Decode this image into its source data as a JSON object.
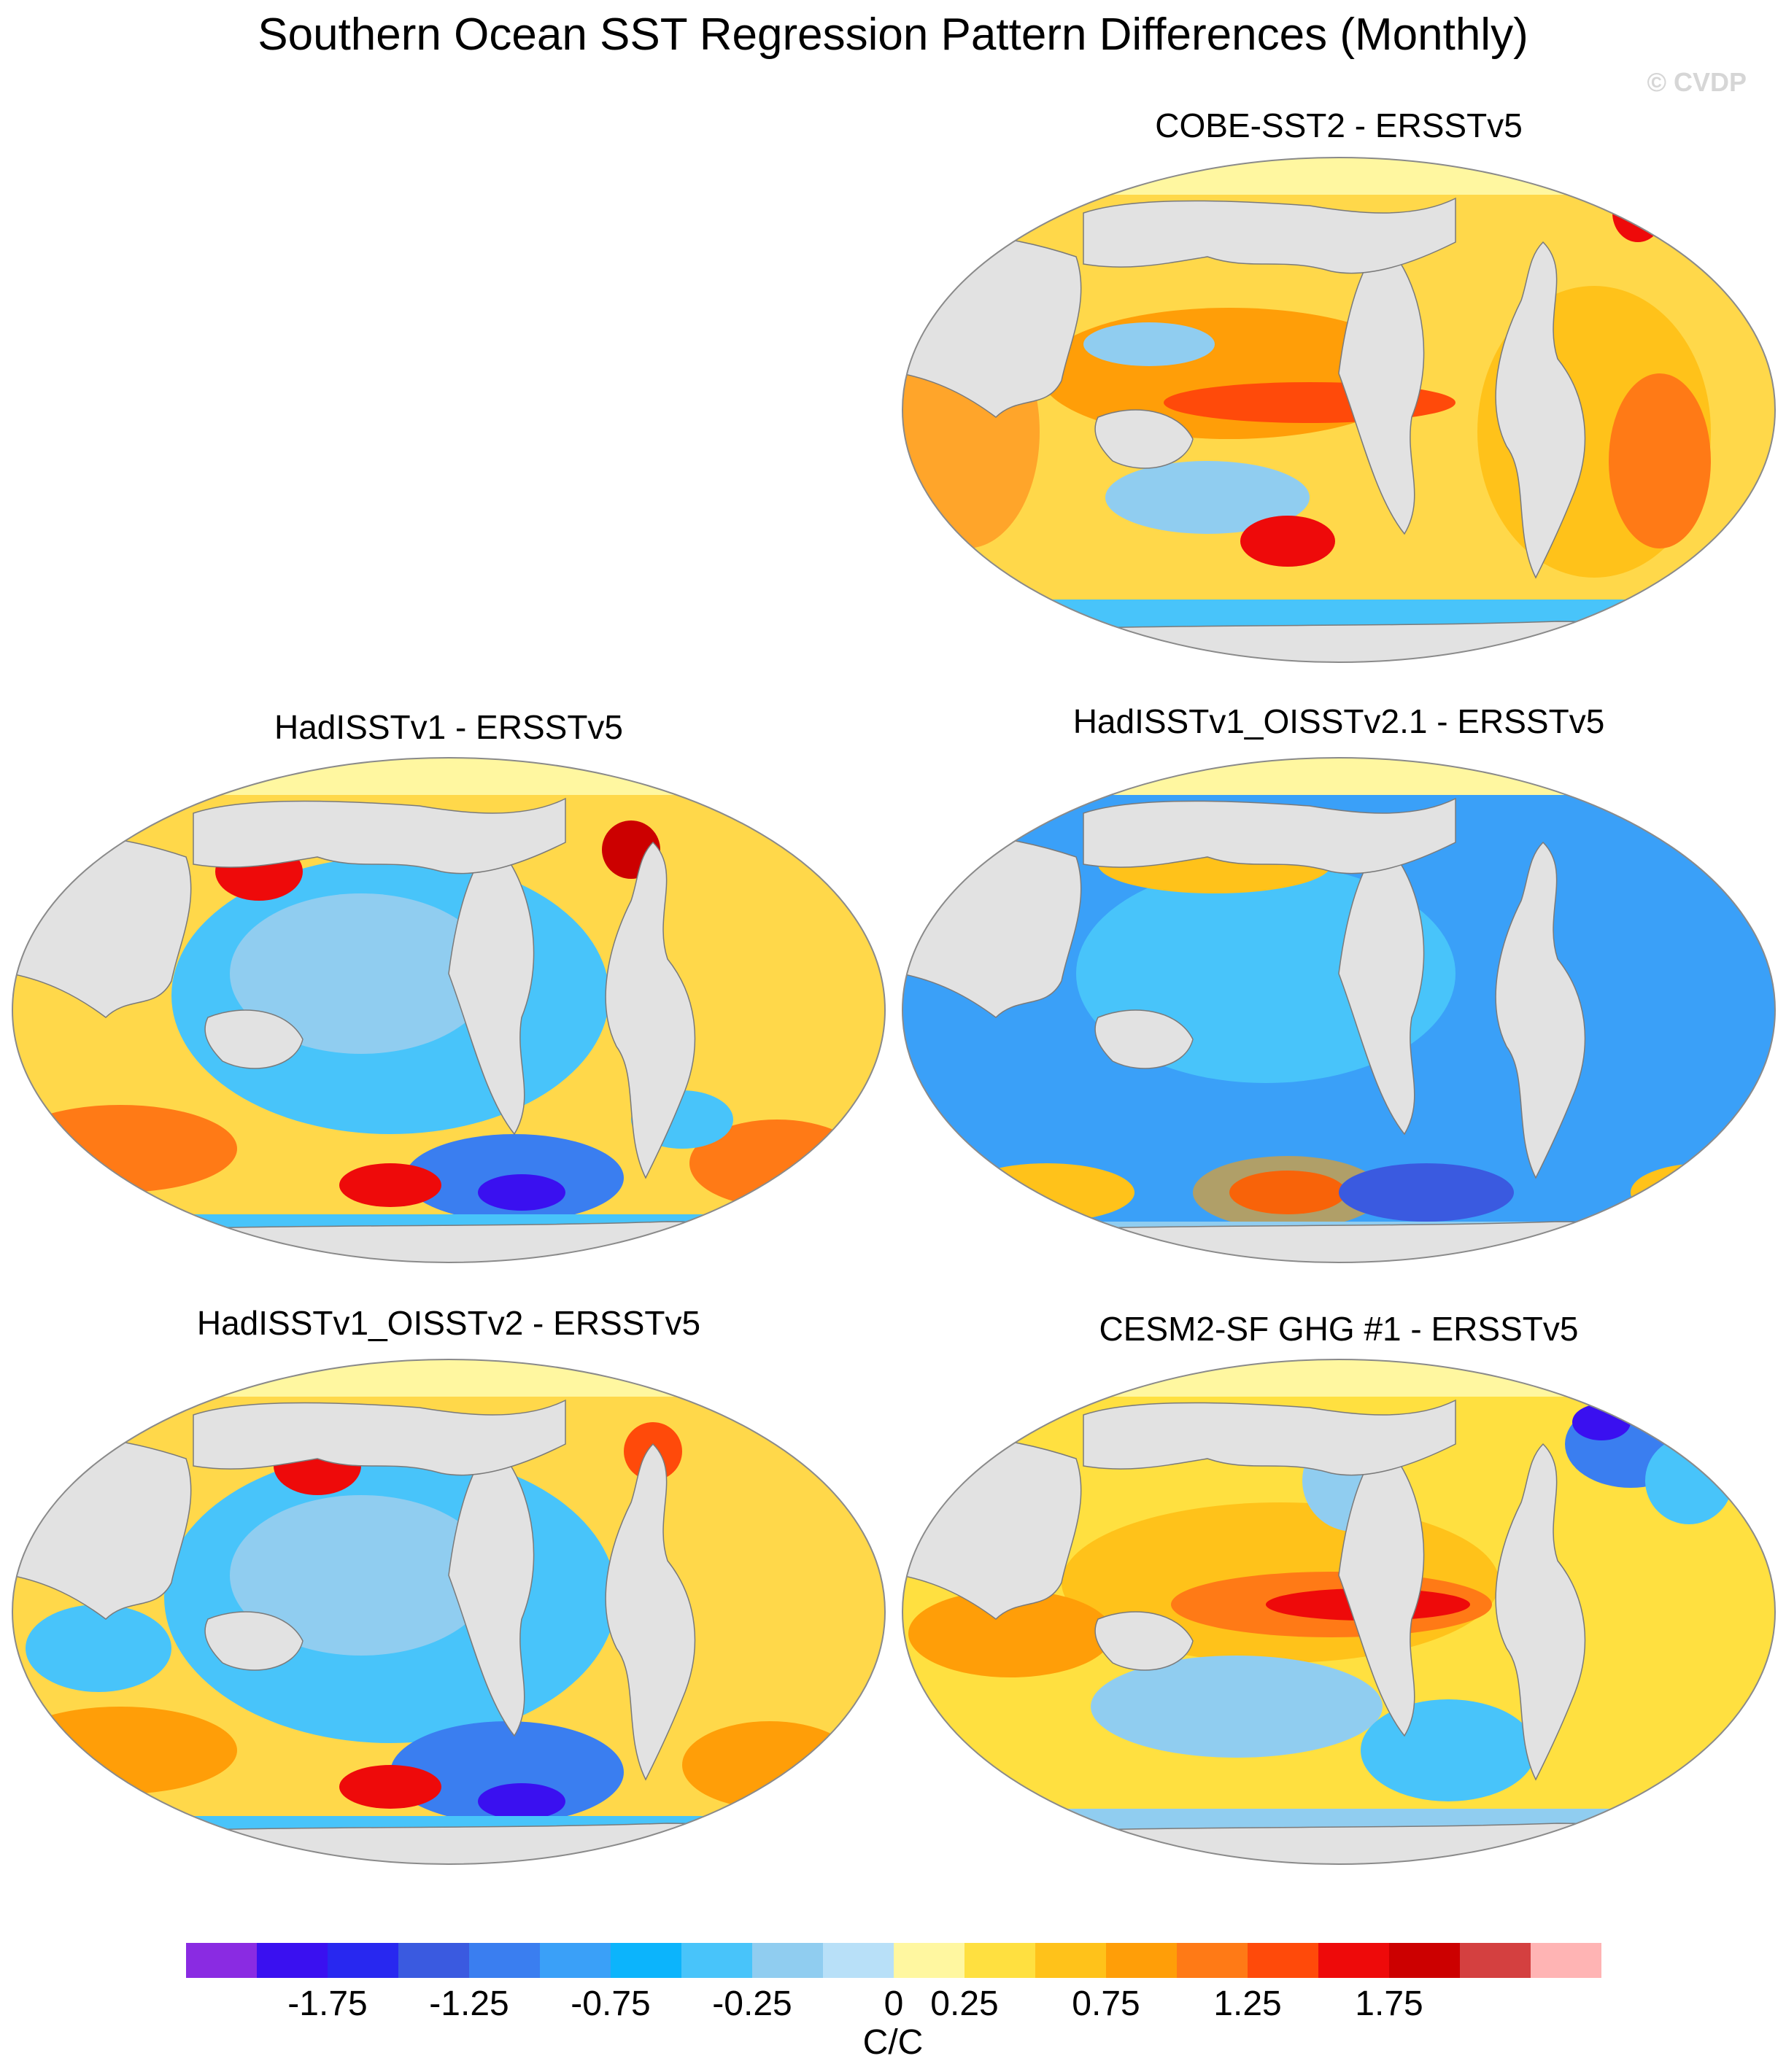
{
  "figure": {
    "title": "Southern Ocean SST Regression Pattern Differences (Monthly)",
    "watermark": "© CVDP"
  },
  "panels": [
    {
      "id": "cobe",
      "title": "COBE-SST2 - ERSSTv5",
      "dominant": "warm"
    },
    {
      "id": "hadisst",
      "title": "HadISSTv1 - ERSSTv5",
      "dominant": "mixed"
    },
    {
      "id": "hadisst_oisst21",
      "title": "HadISSTv1_OISSTv2.1 - ERSSTv5",
      "dominant": "cool"
    },
    {
      "id": "hadisst_oisst2",
      "title": "HadISSTv1_OISSTv2 - ERSSTv5",
      "dominant": "mixed-cool"
    },
    {
      "id": "cesm2",
      "title": "CESM2-SF GHG #1 - ERSSTv5",
      "dominant": "warm-tropics"
    }
  ],
  "colorbar": {
    "units": "C/C",
    "tick_labels": [
      "-1.75",
      "-1.25",
      "-0.75",
      "-0.25",
      "0",
      "0.25",
      "0.75",
      "1.25",
      "1.75"
    ],
    "tick_values": [
      -1.75,
      -1.25,
      -0.75,
      -0.25,
      0,
      0.25,
      0.75,
      1.25,
      1.75
    ],
    "colors": [
      "#8a2be2",
      "#3a10f0",
      "#2828f0",
      "#3a5ae0",
      "#3a7ef0",
      "#3aa0f8",
      "#0cb4fc",
      "#48c4fa",
      "#90cdf0",
      "#b8e0f8",
      "#fff7a0",
      "#ffe040",
      "#ffc21a",
      "#ff9e08",
      "#ff7a16",
      "#ff4a0a",
      "#ee0a0a",
      "#cc0000",
      "#d44040",
      "#ffb4b4"
    ]
  }
}
